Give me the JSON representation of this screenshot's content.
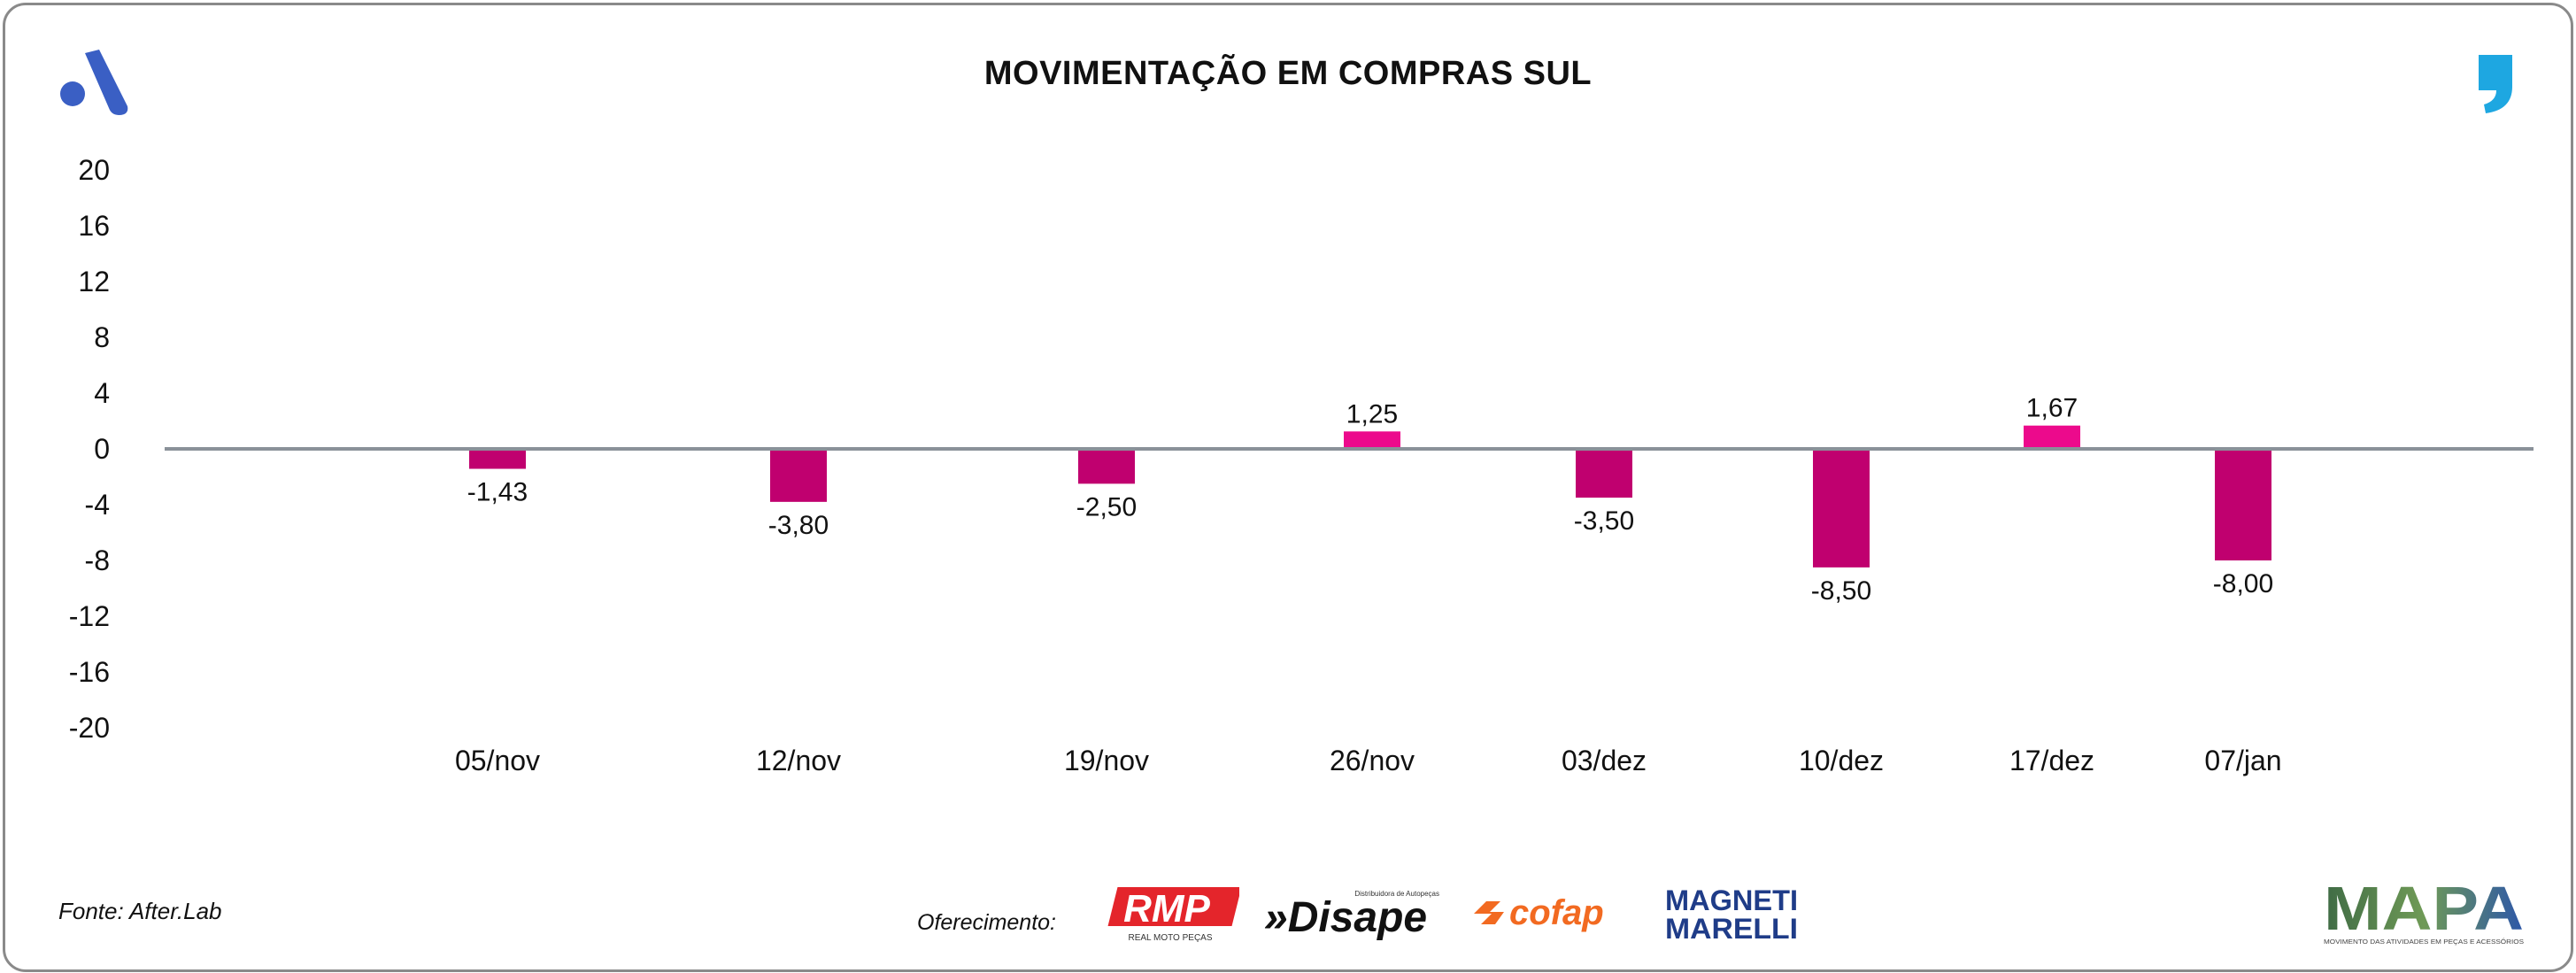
{
  "title": "MOVIMENTAÇÃO EM COMPRAS SUL",
  "source": "Fonte: After.Lab",
  "sponsors_label": "Oferecimento:",
  "sponsors": {
    "rmp": "RMP",
    "rmp_sub": "REAL MOTO PEÇAS",
    "disape": "»Disape",
    "disape_sub": "Distribuidora de Autopeças",
    "cofap": "cofap",
    "magneti_1": "MAGNETI",
    "magneti_2": "MARELLI",
    "mapa": "MAPA",
    "mapa_sub": "MOVIMENTO DAS ATIVIDADES EM PEÇAS E ACESSÓRIOS"
  },
  "icons": [
    "a-brand-logo-icon",
    "quote-mark-icon"
  ],
  "colors": {
    "bar_negative": "#c0006f",
    "bar_positive": "#ec0a8c",
    "zero_line": "#8a9199",
    "logo_a": "#3a5fc4",
    "quote": "#1ea7e1",
    "rmp_red": "#e4252b",
    "cofap_orange": "#f26a21",
    "magneti_blue": "#1f3c88"
  },
  "chart_data": {
    "type": "bar",
    "title": "MOVIMENTAÇÃO EM COMPRAS SUL",
    "categories": [
      "05/nov",
      "12/nov",
      "19/nov",
      "26/nov",
      "03/dez",
      "10/dez",
      "17/dez",
      "07/jan"
    ],
    "values": [
      -1.43,
      -3.8,
      -2.5,
      1.25,
      -3.5,
      -8.5,
      1.67,
      -8.0
    ],
    "labels": [
      "-1,43",
      "-3,80",
      "-2,50",
      "1,25",
      "-3,50",
      "-8,50",
      "1,67",
      "-8,00"
    ],
    "y_ticks": [
      "20",
      "16",
      "12",
      "8",
      "4",
      "0",
      "-4",
      "-8",
      "-12",
      "-16",
      "-20"
    ],
    "ylim": [
      -20,
      20
    ],
    "grid": false,
    "legend": "none"
  }
}
